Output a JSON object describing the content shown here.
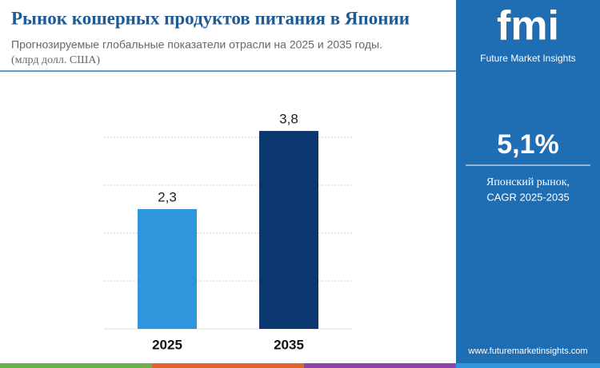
{
  "chart_data": {
    "type": "bar",
    "title": "Рынок кошерных продуктов питания в Японии",
    "subtitle": "Прогнозируемые глобальные показатели отрасли на 2025 и 2035 годы.",
    "unit": "(млрд долл. США)",
    "categories": [
      "2025",
      "2035"
    ],
    "values": [
      2.3,
      3.8
    ],
    "value_labels": [
      "2,3",
      "3,8"
    ],
    "colors": [
      "#2f95dc",
      "#0c3872"
    ],
    "ylim": [
      0,
      4
    ]
  },
  "sidebar": {
    "logo": "fmi",
    "brand": "Future Market Insights",
    "stat": "5,1%",
    "stat_label": "Японский рынок,",
    "stat_sub": "CAGR 2025-2035",
    "url": "www.futuremarketinsights.com"
  }
}
